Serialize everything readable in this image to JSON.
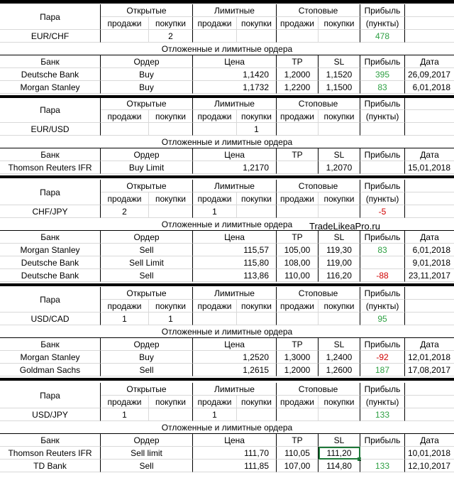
{
  "headers": {
    "pair": "Пара",
    "open": "Открытые",
    "limit": "Лимитные",
    "stop": "Стоповые",
    "profit": "Прибыль",
    "sells": "продажи",
    "buys": "покупки",
    "points": "(пункты)",
    "orders_title": "Отложенные и лимитные ордера",
    "bank": "Банк",
    "order": "Ордер",
    "price": "Цена",
    "tp": "TP",
    "sl": "SL",
    "date": "Дата"
  },
  "watermark": "TradeLikeaPro.ru",
  "blocks": [
    {
      "pair": "EUR/CHF",
      "open_sell": "",
      "open_buy": "2",
      "limit_sell": "",
      "limit_buy": "",
      "stop_sell": "",
      "stop_buy": "",
      "profit": "478",
      "profit_color": "green",
      "orders": [
        {
          "bank": "Deutsche Bank",
          "order": "Buy",
          "price": "1,1420",
          "tp": "1,2000",
          "sl": "1,1520",
          "profit": "395",
          "profit_color": "green",
          "date": "26,09,2017"
        },
        {
          "bank": "Morgan Stanley",
          "order": "Buy",
          "price": "1,1732",
          "tp": "1,2200",
          "sl": "1,1500",
          "profit": "83",
          "profit_color": "green",
          "date": "6,01,2018"
        }
      ]
    },
    {
      "pair": "EUR/USD",
      "open_sell": "",
      "open_buy": "",
      "limit_sell": "",
      "limit_buy": "1",
      "stop_sell": "",
      "stop_buy": "",
      "profit": "",
      "profit_color": "",
      "orders": [
        {
          "bank": "Thomson Reuters IFR",
          "order": "Buy Limit",
          "price": "1,2170",
          "tp": "",
          "sl": "1,2070",
          "profit": "",
          "profit_color": "",
          "date": "15,01,2018"
        }
      ]
    },
    {
      "pair": "CHF/JPY",
      "open_sell": "2",
      "open_buy": "",
      "limit_sell": "1",
      "limit_buy": "",
      "stop_sell": "",
      "stop_buy": "",
      "profit": "-5",
      "profit_color": "red",
      "orders": [
        {
          "bank": "Morgan Stanley",
          "order": "Sell",
          "price": "115,57",
          "tp": "105,00",
          "sl": "119,30",
          "profit": "83",
          "profit_color": "green",
          "date": "6,01,2018"
        },
        {
          "bank": "Deutsche Bank",
          "order": "Sell Limit",
          "price": "115,80",
          "tp": "108,00",
          "sl": "119,00",
          "profit": "",
          "profit_color": "",
          "date": "9,01,2018"
        },
        {
          "bank": "Deutsche Bank",
          "order": "Sell",
          "price": "113,86",
          "tp": "110,00",
          "sl": "116,20",
          "profit": "-88",
          "profit_color": "red",
          "date": "23,11,2017"
        }
      ]
    },
    {
      "pair": "USD/CAD",
      "open_sell": "1",
      "open_buy": "1",
      "limit_sell": "",
      "limit_buy": "",
      "stop_sell": "",
      "stop_buy": "",
      "profit": "95",
      "profit_color": "green",
      "orders": [
        {
          "bank": "Morgan Stanley",
          "order": "Buy",
          "price": "1,2520",
          "tp": "1,3000",
          "sl": "1,2400",
          "profit": "-92",
          "profit_color": "red",
          "date": "12,01,2018"
        },
        {
          "bank": "Goldman Sachs",
          "order": "Sell",
          "price": "1,2615",
          "tp": "1,2000",
          "sl": "1,2600",
          "profit": "187",
          "profit_color": "green",
          "date": "17,08,2017"
        }
      ]
    },
    {
      "pair": "USD/JPY",
      "open_sell": "1",
      "open_buy": "",
      "limit_sell": "1",
      "limit_buy": "",
      "stop_sell": "",
      "stop_buy": "",
      "profit": "133",
      "profit_color": "green",
      "orders": [
        {
          "bank": "Thomson Reuters IFR",
          "order": "Sell limit",
          "price": "111,70",
          "tp": "110,05",
          "sl": "111,20",
          "profit": "",
          "profit_color": "",
          "date": "10,01,2018"
        },
        {
          "bank": "TD Bank",
          "order": "Sell",
          "price": "111,85",
          "tp": "107,00",
          "sl": "114,80",
          "profit": "133",
          "profit_color": "green",
          "date": "12,10,2017"
        }
      ]
    }
  ]
}
